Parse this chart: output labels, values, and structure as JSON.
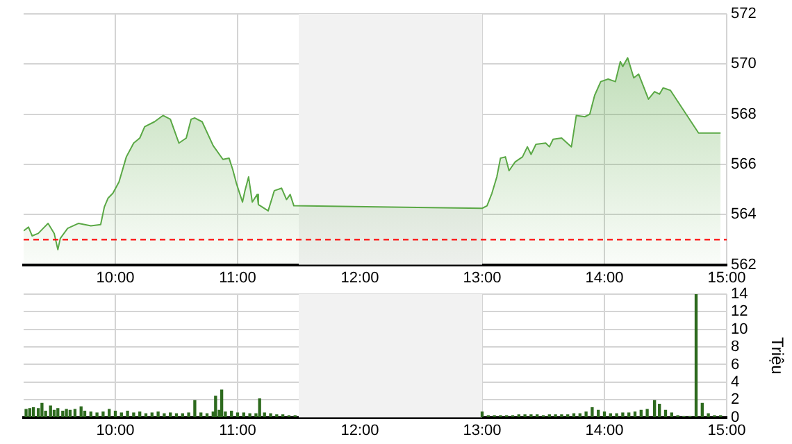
{
  "chart_data": [
    {
      "type": "area",
      "color": "#5aa845",
      "marker": "none",
      "grid": true,
      "x": [
        9.25,
        9.29,
        9.32,
        9.37,
        9.41,
        9.45,
        9.5,
        9.53,
        9.55,
        9.61,
        9.7,
        9.8,
        9.88,
        9.91,
        9.94,
        9.98,
        10.03,
        10.09,
        10.15,
        10.2,
        10.24,
        10.32,
        10.39,
        10.45,
        10.52,
        10.58,
        10.62,
        10.65,
        10.71,
        10.8,
        10.88,
        10.93,
        10.96,
        10.99,
        11.04,
        11.06,
        11.09,
        11.12,
        11.16,
        11.17,
        11.25,
        11.3,
        11.36,
        11.4,
        11.43,
        11.46,
        13.0,
        13.04,
        13.08,
        13.12,
        13.15,
        13.19,
        13.22,
        13.27,
        13.33,
        13.37,
        13.4,
        13.44,
        13.52,
        13.55,
        13.58,
        13.65,
        13.73,
        13.77,
        13.84,
        13.88,
        13.92,
        13.97,
        14.03,
        14.09,
        14.13,
        14.15,
        14.19,
        14.24,
        14.28,
        14.36,
        14.41,
        14.45,
        14.48,
        14.54,
        14.77,
        14.95
      ],
      "values": [
        563.35,
        563.5,
        563.15,
        563.25,
        563.45,
        563.65,
        563.25,
        562.6,
        563.05,
        563.45,
        563.65,
        563.55,
        563.6,
        564.3,
        564.65,
        564.85,
        565.3,
        566.3,
        566.85,
        567.05,
        567.5,
        567.7,
        567.95,
        567.8,
        566.85,
        567.05,
        567.8,
        567.85,
        567.7,
        566.75,
        566.2,
        566.25,
        565.8,
        565.25,
        564.5,
        564.95,
        565.5,
        564.5,
        564.8,
        564.4,
        564.15,
        564.95,
        565.05,
        564.6,
        564.8,
        564.35,
        564.25,
        564.35,
        564.85,
        565.5,
        566.25,
        566.3,
        565.75,
        566.1,
        566.3,
        566.7,
        566.4,
        566.8,
        566.85,
        566.7,
        567.0,
        567.05,
        566.7,
        567.95,
        567.9,
        568.0,
        568.75,
        569.3,
        569.4,
        569.3,
        570.1,
        569.9,
        570.25,
        569.45,
        569.6,
        568.6,
        568.9,
        568.8,
        569.05,
        568.95,
        567.25,
        567.25
      ],
      "xlim": [
        9.25,
        15
      ],
      "xticks": [
        {
          "value": 10,
          "label": "10:00"
        },
        {
          "value": 11,
          "label": "11:00"
        },
        {
          "value": 12,
          "label": "12:00"
        },
        {
          "value": 13,
          "label": "13:00"
        },
        {
          "value": 14,
          "label": "14:00"
        },
        {
          "value": 15,
          "label": "15:00"
        }
      ],
      "ylim": [
        562,
        572
      ],
      "yticks": [
        562,
        564,
        566,
        568,
        570,
        572
      ],
      "ref_lines": [
        {
          "axis": "y",
          "value": 563,
          "color": "#ff0000",
          "line_style": "dashed"
        }
      ],
      "bands": [
        {
          "axis": "x",
          "from": 11.5,
          "to": 13,
          "color": "#f2f2f2"
        }
      ]
    },
    {
      "type": "bar",
      "color": "#2d6a1e",
      "grid": true,
      "ylabel": "Triệu",
      "x": [
        9.27,
        9.3,
        9.33,
        9.37,
        9.4,
        9.43,
        9.47,
        9.5,
        9.53,
        9.57,
        9.6,
        9.63,
        9.67,
        9.72,
        9.75,
        9.8,
        9.85,
        9.9,
        9.95,
        10.0,
        10.05,
        10.1,
        10.15,
        10.2,
        10.25,
        10.3,
        10.35,
        10.4,
        10.45,
        10.5,
        10.55,
        10.6,
        10.65,
        10.7,
        10.75,
        10.8,
        10.82,
        10.85,
        10.87,
        10.9,
        10.95,
        11.0,
        11.05,
        11.1,
        11.15,
        11.18,
        11.22,
        11.27,
        11.32,
        11.37,
        11.42,
        11.47,
        13.0,
        13.05,
        13.1,
        13.15,
        13.2,
        13.25,
        13.3,
        13.35,
        13.4,
        13.45,
        13.5,
        13.55,
        13.6,
        13.65,
        13.7,
        13.75,
        13.8,
        13.85,
        13.9,
        13.95,
        14.0,
        14.05,
        14.1,
        14.15,
        14.2,
        14.25,
        14.3,
        14.35,
        14.41,
        14.45,
        14.5,
        14.55,
        14.6,
        14.65,
        14.7,
        14.75,
        14.8,
        14.85,
        14.9,
        14.95
      ],
      "values": [
        0.9,
        1.0,
        1.1,
        1.0,
        1.6,
        0.7,
        1.3,
        0.8,
        1.0,
        0.7,
        0.9,
        0.8,
        0.9,
        1.2,
        0.7,
        0.6,
        0.5,
        0.6,
        0.9,
        0.7,
        0.5,
        0.7,
        0.5,
        0.6,
        0.4,
        0.5,
        0.6,
        0.4,
        0.5,
        0.4,
        0.4,
        0.5,
        1.9,
        0.5,
        0.4,
        0.6,
        2.4,
        0.8,
        3.1,
        0.6,
        0.7,
        0.5,
        0.5,
        0.4,
        0.4,
        2.1,
        0.5,
        0.4,
        0.3,
        0.3,
        0.2,
        0.2,
        0.6,
        0.2,
        0.2,
        0.2,
        0.2,
        0.2,
        0.3,
        0.3,
        0.3,
        0.3,
        0.2,
        0.3,
        0.3,
        0.3,
        0.3,
        0.4,
        0.4,
        0.6,
        1.1,
        0.8,
        0.6,
        0.4,
        0.4,
        0.5,
        0.5,
        0.6,
        0.8,
        0.9,
        1.9,
        1.5,
        0.8,
        0.5,
        0.2,
        0.1,
        0.1,
        14,
        1.6,
        0.4,
        0.2,
        0.2
      ],
      "xlim": [
        9.25,
        15
      ],
      "xticks": [
        {
          "value": 10,
          "label": "10:00"
        },
        {
          "value": 11,
          "label": "11:00"
        },
        {
          "value": 12,
          "label": "12:00"
        },
        {
          "value": 13,
          "label": "13:00"
        },
        {
          "value": 14,
          "label": "14:00"
        },
        {
          "value": 15,
          "label": "15:00"
        }
      ],
      "ylim": [
        0,
        14
      ],
      "yticks": [
        0,
        2,
        4,
        6,
        8,
        10,
        12,
        14
      ],
      "bands": [
        {
          "axis": "x",
          "from": 11.5,
          "to": 13,
          "color": "#f2f2f2"
        }
      ]
    }
  ]
}
